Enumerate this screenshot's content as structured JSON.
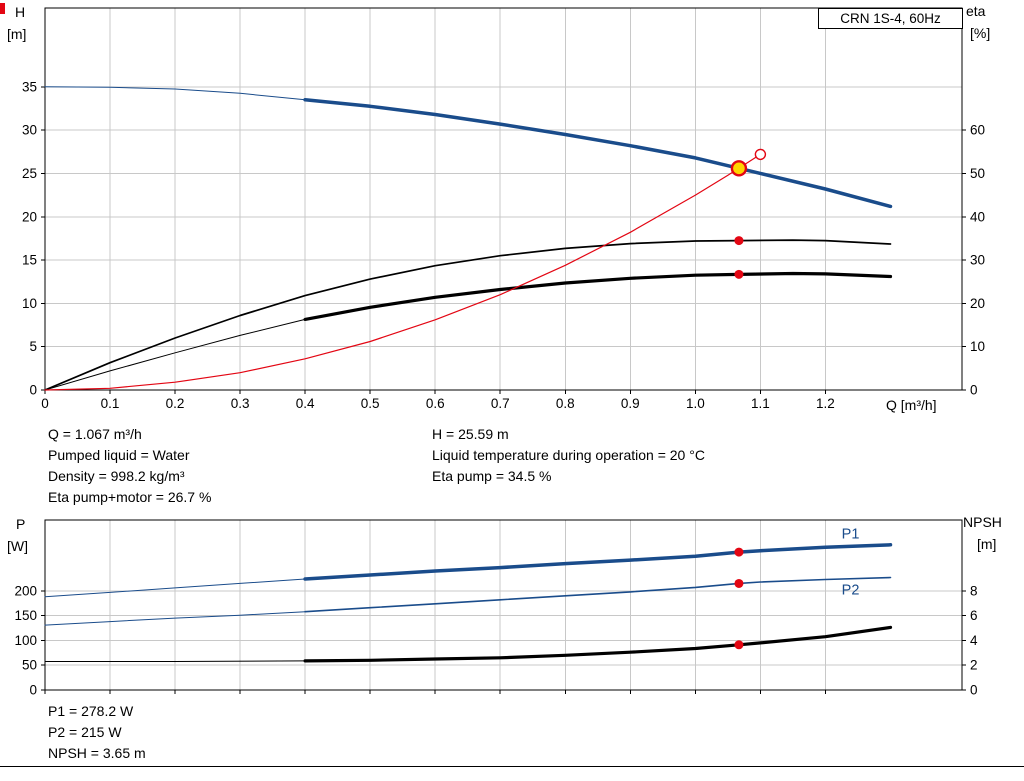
{
  "title_box": {
    "label": "CRN 1S-4, 60Hz"
  },
  "colors": {
    "blue": "#1a4c8b",
    "black": "#000000",
    "red": "#e30613",
    "yellow": "#ffd500",
    "grid": "#c8c8c8",
    "axis": "#000000",
    "background": "#ffffff"
  },
  "chart_data": [
    {
      "id": "qh-eta-chart",
      "type": "line",
      "title": "CRN 1S-4, 60Hz",
      "xlabel": "Q [m³/h]",
      "ylabel_left": [
        "H",
        "[m]"
      ],
      "ylabel_right": [
        "eta",
        "[%]"
      ],
      "xlim": [
        0,
        1.41
      ],
      "ylim_left": [
        0,
        44.1
      ],
      "ylim_right": [
        0,
        88.2
      ],
      "grid": true,
      "legend": "none",
      "x_ticks": [
        0,
        0.1,
        0.2,
        0.3,
        0.4,
        0.5,
        0.6,
        0.7,
        0.8,
        0.9,
        1.0,
        1.1,
        1.2
      ],
      "x_tick_labels": [
        "0",
        "0.1",
        "0.2",
        "0.3",
        "0.4",
        "0.5",
        "0.6",
        "0.7",
        "0.8",
        "0.9",
        "1.0",
        "1.1",
        "1.2"
      ],
      "y_left_ticks": [
        0,
        5,
        10,
        15,
        20,
        25,
        30,
        35
      ],
      "y_right_ticks": [
        0,
        10,
        20,
        30,
        40,
        50,
        60
      ],
      "series": [
        {
          "name": "qh-curve-below-min-flow",
          "axis": "left",
          "color": "blue",
          "width": 1,
          "points": [
            [
              0,
              35.0
            ],
            [
              0.1,
              34.95
            ],
            [
              0.2,
              34.75
            ],
            [
              0.3,
              34.25
            ],
            [
              0.4,
              33.5
            ]
          ]
        },
        {
          "name": "qh-curve",
          "axis": "left",
          "color": "blue",
          "width": 3.5,
          "points": [
            [
              0.4,
              33.5
            ],
            [
              0.5,
              32.75
            ],
            [
              0.6,
              31.8
            ],
            [
              0.7,
              30.7
            ],
            [
              0.8,
              29.5
            ],
            [
              0.9,
              28.2
            ],
            [
              1.0,
              26.8
            ],
            [
              1.067,
              25.59
            ],
            [
              1.1,
              25.0
            ],
            [
              1.2,
              23.2
            ],
            [
              1.3,
              21.2
            ]
          ]
        },
        {
          "name": "eta-pump-curve",
          "axis": "right",
          "color": "black",
          "width": 1.7,
          "points": [
            [
              0,
              0
            ],
            [
              0.1,
              6.3
            ],
            [
              0.2,
              12.0
            ],
            [
              0.3,
              17.2
            ],
            [
              0.4,
              21.8
            ],
            [
              0.5,
              25.6
            ],
            [
              0.6,
              28.7
            ],
            [
              0.7,
              31.0
            ],
            [
              0.8,
              32.7
            ],
            [
              0.9,
              33.8
            ],
            [
              1.0,
              34.4
            ],
            [
              1.067,
              34.5
            ],
            [
              1.15,
              34.6
            ],
            [
              1.2,
              34.5
            ],
            [
              1.3,
              33.7
            ]
          ]
        },
        {
          "name": "eta-pump-motor-curve-below-min-flow",
          "axis": "right",
          "color": "black",
          "width": 1,
          "points": [
            [
              0,
              0
            ],
            [
              0.1,
              4.4
            ],
            [
              0.2,
              8.6
            ],
            [
              0.3,
              12.6
            ],
            [
              0.4,
              16.3
            ]
          ]
        },
        {
          "name": "eta-pump-motor-curve",
          "axis": "right",
          "color": "black",
          "width": 3.2,
          "points": [
            [
              0.4,
              16.3
            ],
            [
              0.5,
              19.1
            ],
            [
              0.6,
              21.4
            ],
            [
              0.7,
              23.2
            ],
            [
              0.8,
              24.7
            ],
            [
              0.9,
              25.8
            ],
            [
              1.0,
              26.5
            ],
            [
              1.067,
              26.7
            ],
            [
              1.15,
              26.9
            ],
            [
              1.2,
              26.8
            ],
            [
              1.3,
              26.2
            ]
          ]
        },
        {
          "name": "system-curve",
          "axis": "left",
          "color": "red",
          "width": 1.2,
          "points": [
            [
              0,
              0
            ],
            [
              0.1,
              0.2
            ],
            [
              0.2,
              0.9
            ],
            [
              0.3,
              2.0
            ],
            [
              0.4,
              3.6
            ],
            [
              0.5,
              5.6
            ],
            [
              0.6,
              8.1
            ],
            [
              0.7,
              11.0
            ],
            [
              0.8,
              14.4
            ],
            [
              0.9,
              18.2
            ],
            [
              1.0,
              22.5
            ],
            [
              1.05,
              24.8
            ],
            [
              1.1,
              27.2
            ]
          ]
        }
      ],
      "markers": [
        {
          "name": "duty-point",
          "axis": "left",
          "x": 1.067,
          "y": 25.59,
          "style": "duty"
        },
        {
          "name": "eta-pump-duty-point",
          "axis": "right",
          "x": 1.067,
          "y": 34.5,
          "style": "dot"
        },
        {
          "name": "eta-pump-motor-duty-point",
          "axis": "right",
          "x": 1.067,
          "y": 26.7,
          "style": "dot"
        },
        {
          "name": "system-curve-end-point",
          "axis": "left",
          "x": 1.1,
          "y": 27.2,
          "style": "open"
        }
      ],
      "curve_labels": []
    },
    {
      "id": "power-npsh-chart",
      "type": "line",
      "title": "",
      "xlabel": "",
      "ylabel_left": [
        "P",
        "[W]"
      ],
      "ylabel_right": [
        "NPSH",
        "[m]"
      ],
      "xlim": [
        0,
        1.41
      ],
      "ylim_left": [
        0,
        343
      ],
      "ylim_right": [
        0,
        13.72
      ],
      "grid": true,
      "legend": "none",
      "x_ticks": [
        0,
        0.1,
        0.2,
        0.3,
        0.4,
        0.5,
        0.6,
        0.7,
        0.8,
        0.9,
        1.0,
        1.1,
        1.2
      ],
      "x_tick_labels": [],
      "y_left_ticks": [
        0,
        50,
        100,
        150,
        200
      ],
      "y_right_ticks": [
        0,
        2,
        4,
        6,
        8
      ],
      "series": [
        {
          "name": "p1-curve-below-min-flow",
          "axis": "left",
          "color": "blue",
          "width": 1,
          "points": [
            [
              0,
              188
            ],
            [
              0.1,
              197
            ],
            [
              0.2,
              206
            ],
            [
              0.3,
              215
            ],
            [
              0.4,
              224
            ]
          ]
        },
        {
          "name": "p1-curve",
          "axis": "left",
          "color": "blue",
          "width": 3.5,
          "points": [
            [
              0.4,
              224
            ],
            [
              0.5,
              232
            ],
            [
              0.6,
              240
            ],
            [
              0.7,
              247
            ],
            [
              0.8,
              255
            ],
            [
              0.9,
              262
            ],
            [
              1.0,
              270
            ],
            [
              1.067,
              278.2
            ],
            [
              1.1,
              281
            ],
            [
              1.2,
              288
            ],
            [
              1.3,
              293
            ]
          ]
        },
        {
          "name": "p2-curve-below-min-flow",
          "axis": "left",
          "color": "blue",
          "width": 1,
          "points": [
            [
              0,
              131
            ],
            [
              0.1,
              138
            ],
            [
              0.2,
              145
            ],
            [
              0.3,
              151
            ],
            [
              0.4,
              158
            ]
          ]
        },
        {
          "name": "p2-curve",
          "axis": "left",
          "color": "blue",
          "width": 1.6,
          "points": [
            [
              0.4,
              158
            ],
            [
              0.5,
              166
            ],
            [
              0.6,
              174
            ],
            [
              0.7,
              182
            ],
            [
              0.8,
              190
            ],
            [
              0.9,
              198
            ],
            [
              1.0,
              207
            ],
            [
              1.067,
              215
            ],
            [
              1.1,
              218
            ],
            [
              1.2,
              223
            ],
            [
              1.3,
              227
            ]
          ]
        },
        {
          "name": "npsh-curve-below-min-flow",
          "axis": "right",
          "color": "black",
          "width": 1,
          "points": [
            [
              0,
              2.3
            ],
            [
              0.2,
              2.3
            ],
            [
              0.4,
              2.35
            ]
          ]
        },
        {
          "name": "npsh-curve",
          "axis": "right",
          "color": "black",
          "width": 3.2,
          "points": [
            [
              0.4,
              2.35
            ],
            [
              0.5,
              2.4
            ],
            [
              0.6,
              2.5
            ],
            [
              0.7,
              2.6
            ],
            [
              0.8,
              2.8
            ],
            [
              0.9,
              3.05
            ],
            [
              1.0,
              3.35
            ],
            [
              1.067,
              3.65
            ],
            [
              1.1,
              3.8
            ],
            [
              1.2,
              4.3
            ],
            [
              1.3,
              5.05
            ]
          ]
        }
      ],
      "markers": [
        {
          "name": "p1-duty-point",
          "axis": "left",
          "x": 1.067,
          "y": 278.2,
          "style": "dot"
        },
        {
          "name": "p2-duty-point",
          "axis": "left",
          "x": 1.067,
          "y": 215,
          "style": "dot"
        },
        {
          "name": "npsh-duty-point",
          "axis": "right",
          "x": 1.067,
          "y": 3.65,
          "style": "dot"
        }
      ],
      "curve_labels": [
        {
          "text": "P1",
          "axis": "left",
          "x": 1.225,
          "y": 306,
          "color": "blue"
        },
        {
          "text": "P2",
          "axis": "left",
          "x": 1.225,
          "y": 193,
          "color": "blue"
        }
      ]
    }
  ],
  "duty_text": {
    "left": [
      "Q = 1.067 m³/h",
      "Pumped liquid = Water",
      "Density = 998.2 kg/m³",
      "Eta pump+motor = 26.7 %"
    ],
    "right": [
      "H = 25.59 m",
      "Liquid temperature during operation = 20 °C",
      "Eta pump = 34.5 %"
    ]
  },
  "power_text": [
    "P1 = 278.2 W",
    "P2 = 215 W",
    "NPSH = 3.65 m"
  ]
}
